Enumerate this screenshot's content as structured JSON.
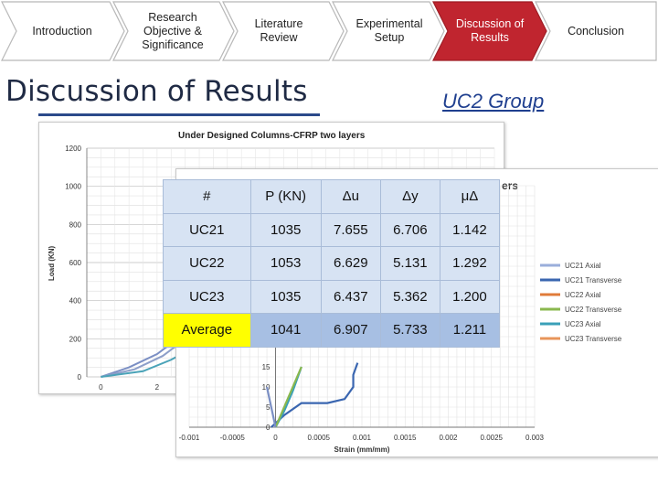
{
  "nav": {
    "steps": [
      {
        "label": "Introduction"
      },
      {
        "label": "Research Objective & Significance"
      },
      {
        "label": "Literature Review"
      },
      {
        "label": "Experimental Setup"
      },
      {
        "label": "Discussion of Results",
        "active": true
      },
      {
        "label": "Conclusion"
      }
    ],
    "colors": {
      "inactive": "#ffffff",
      "active": "#c0252f",
      "border": "#b8b8b8"
    }
  },
  "page": {
    "title": "Discussion of Results",
    "group": "UC2 Group"
  },
  "table": {
    "headers": [
      "#",
      "P (KN)",
      "Δu",
      "Δy",
      "μΔ"
    ],
    "rows": [
      [
        "UC21",
        "1035",
        "7.655",
        "6.706",
        "1.142"
      ],
      [
        "UC22",
        "1053",
        "6.629",
        "5.131",
        "1.292"
      ],
      [
        "UC23",
        "1035",
        "6.437",
        "5.362",
        "1.200"
      ],
      [
        "Average",
        "1041",
        "6.907",
        "5.733",
        "1.211"
      ]
    ]
  },
  "chart_data": [
    {
      "type": "line",
      "title": "Under Designed Columns-CFRP two layers",
      "xlabel": "",
      "ylabel": "Load (KN)",
      "yticks": [
        "0",
        "200",
        "400",
        "600",
        "800",
        "1000",
        "1200"
      ],
      "xticks": [
        "0",
        "2"
      ],
      "ylim": [
        0,
        1200
      ],
      "xlim": [
        -0.5,
        14
      ],
      "grid": true,
      "series": [
        {
          "color": "#7b8fc4",
          "x": [
            0,
            1,
            2,
            3,
            4,
            4.8,
            5.4
          ],
          "y": [
            0,
            50,
            120,
            230,
            380,
            520,
            640
          ]
        },
        {
          "color": "#8d9fc9",
          "x": [
            0,
            1.2,
            2.2,
            3.2,
            4,
            4.7
          ],
          "y": [
            0,
            40,
            110,
            220,
            340,
            470
          ]
        },
        {
          "color": "#4aa3b8",
          "x": [
            0,
            1.5,
            2.5,
            3.5,
            4.3,
            5.2
          ],
          "y": [
            0,
            30,
            90,
            170,
            260,
            380
          ]
        }
      ]
    },
    {
      "type": "line",
      "title": "ers",
      "xlabel": "Strain (mm/mm)",
      "xticks": [
        "-0.001",
        "-0.0005",
        "0",
        "0.0005",
        "0.001",
        "0.0015",
        "0.002",
        "0.0025",
        "0.003"
      ],
      "yticks": [
        "0",
        "5",
        "10",
        "15"
      ],
      "xlim": [
        -0.001,
        0.003
      ],
      "grid": true,
      "legend": "right",
      "series": [
        {
          "name": "UC21 Axial",
          "color": "#9aaedb"
        },
        {
          "name": "UC21 Transverse",
          "color": "#3a66b0"
        },
        {
          "name": "UC22 Axial",
          "color": "#e07b39"
        },
        {
          "name": "UC22 Transverse",
          "color": "#8ab84e"
        },
        {
          "name": "UC23 Axial",
          "color": "#3aa0b8"
        },
        {
          "name": "UC23 Transverse",
          "color": "#e8955a"
        }
      ],
      "curves": [
        {
          "color": "#3a66b0",
          "x": [
            -5e-05,
            0.0001,
            0.0003,
            0.0006,
            0.0008,
            0.0009,
            0.0009,
            0.00095
          ],
          "y": [
            0,
            3,
            6,
            6,
            7,
            10,
            13,
            16
          ]
        },
        {
          "color": "#3aa0b8",
          "x": [
            0,
            0.0001,
            0.0002,
            0.0003
          ],
          "y": [
            0,
            4,
            9,
            15
          ]
        },
        {
          "color": "#8ab84e",
          "x": [
            0,
            0.0001,
            0.0002,
            0.0003
          ],
          "y": [
            0,
            5,
            10,
            15
          ]
        },
        {
          "color": "#7b8fc4",
          "x": [
            0,
            -5e-05,
            -0.0001
          ],
          "y": [
            0,
            5,
            10
          ]
        }
      ]
    }
  ]
}
